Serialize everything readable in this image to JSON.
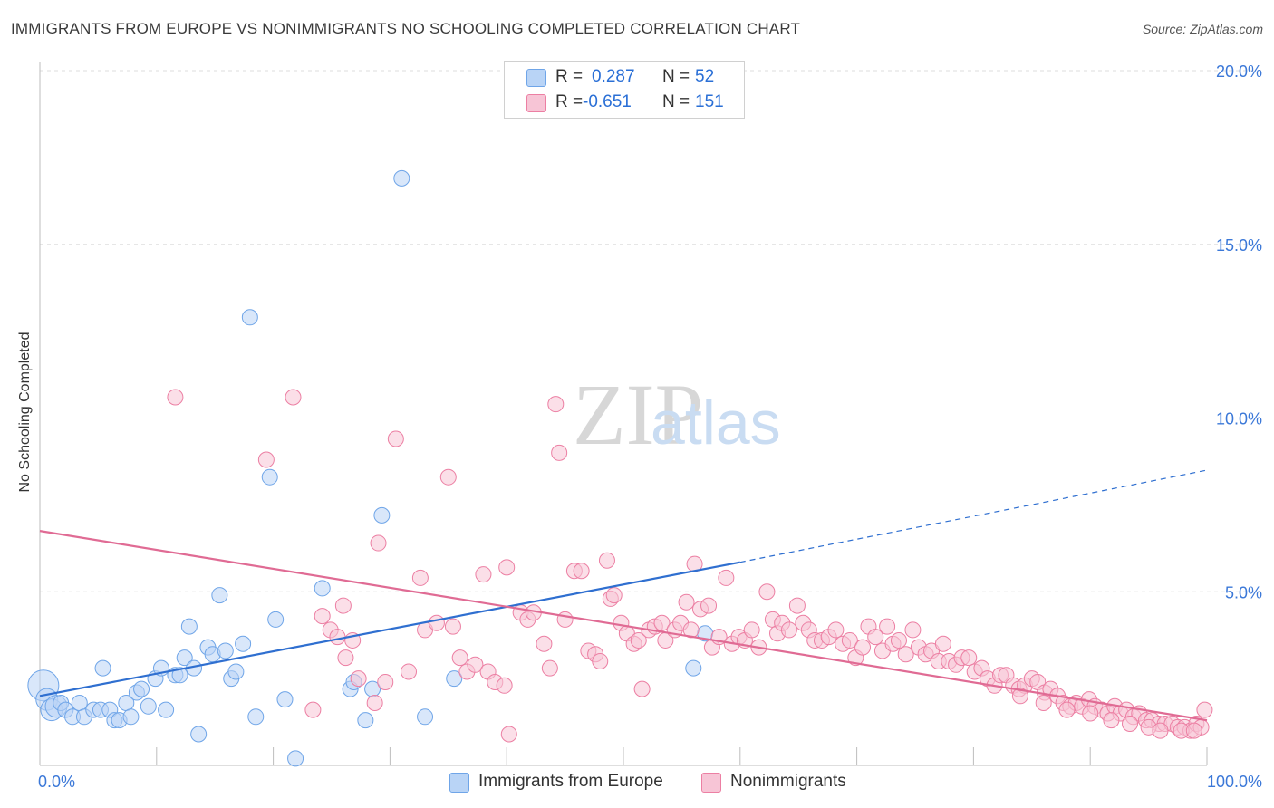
{
  "title": "IMMIGRANTS FROM EUROPE VS NONIMMIGRANTS NO SCHOOLING COMPLETED CORRELATION CHART",
  "source": "Source: ZipAtlas.com",
  "watermark": {
    "zip": "ZIP",
    "atlas": "atlas"
  },
  "legend": {
    "r_label": "R =",
    "n_label": "N =",
    "series": [
      {
        "name": "Immigrants from Europe",
        "r": "0.287",
        "n": "52",
        "color": "#6fa5e8",
        "fill": "#b9d4f6"
      },
      {
        "name": "Nonimmigrants",
        "r": "-0.651",
        "n": "151",
        "color": "#ec7fa3",
        "fill": "#f7c5d6"
      }
    ]
  },
  "chart_data": {
    "type": "scatter",
    "title": "IMMIGRANTS FROM EUROPE VS NONIMMIGRANTS NO SCHOOLING COMPLETED CORRELATION CHART",
    "xlabel": "",
    "ylabel": "No Schooling Completed",
    "xlim": [
      0,
      100
    ],
    "ylim": [
      0,
      20
    ],
    "x_tick_labels": [
      "0.0%",
      "100.0%"
    ],
    "y_tick_labels": [
      "5.0%",
      "10.0%",
      "15.0%",
      "20.0%"
    ],
    "y_ticks": [
      5,
      10,
      15,
      20
    ],
    "series": [
      {
        "name": "Immigrants from Europe",
        "trend": {
          "x0": 0,
          "y0": 2.0,
          "x1": 60,
          "y1": 5.85,
          "dash_to_x": 100,
          "dash_to_y": 8.5
        },
        "points": [
          [
            0.3,
            2.3,
            3
          ],
          [
            0.6,
            1.9,
            2
          ],
          [
            1.0,
            1.6,
            2
          ],
          [
            1.4,
            1.7,
            2
          ],
          [
            1.8,
            1.8,
            1
          ],
          [
            2.2,
            1.6,
            1
          ],
          [
            2.8,
            1.4,
            1
          ],
          [
            3.4,
            1.8,
            1
          ],
          [
            3.8,
            1.4,
            1
          ],
          [
            4.6,
            1.6,
            1
          ],
          [
            5.2,
            1.6,
            1
          ],
          [
            5.4,
            2.8,
            1
          ],
          [
            6.0,
            1.6,
            1
          ],
          [
            6.4,
            1.3,
            1
          ],
          [
            6.8,
            1.3,
            1
          ],
          [
            7.4,
            1.8,
            1
          ],
          [
            7.8,
            1.4,
            1
          ],
          [
            8.3,
            2.1,
            1
          ],
          [
            8.7,
            2.2,
            1
          ],
          [
            9.3,
            1.7,
            1
          ],
          [
            9.9,
            2.5,
            1
          ],
          [
            10.4,
            2.8,
            1
          ],
          [
            10.8,
            1.6,
            1
          ],
          [
            11.6,
            2.6,
            1
          ],
          [
            12.0,
            2.6,
            1
          ],
          [
            12.4,
            3.1,
            1
          ],
          [
            12.8,
            4.0,
            1
          ],
          [
            13.2,
            2.8,
            1
          ],
          [
            13.6,
            0.9,
            1
          ],
          [
            14.4,
            3.4,
            1
          ],
          [
            14.8,
            3.2,
            1
          ],
          [
            15.4,
            4.9,
            1
          ],
          [
            15.9,
            3.3,
            1
          ],
          [
            16.4,
            2.5,
            1
          ],
          [
            16.8,
            2.7,
            1
          ],
          [
            17.4,
            3.5,
            1
          ],
          [
            18.5,
            1.4,
            1
          ],
          [
            18.0,
            12.9,
            1
          ],
          [
            19.7,
            8.3,
            1
          ],
          [
            20.2,
            4.2,
            1
          ],
          [
            21.0,
            1.9,
            1
          ],
          [
            21.9,
            0.2,
            1
          ],
          [
            24.2,
            5.1,
            1
          ],
          [
            26.6,
            2.2,
            1
          ],
          [
            26.9,
            2.4,
            1
          ],
          [
            27.9,
            1.3,
            1
          ],
          [
            28.5,
            2.2,
            1
          ],
          [
            29.3,
            7.2,
            1
          ],
          [
            31.0,
            16.9,
            1
          ],
          [
            33.0,
            1.4,
            1
          ],
          [
            35.5,
            2.5,
            1
          ],
          [
            56.0,
            2.8,
            1
          ],
          [
            57.0,
            3.8,
            1
          ]
        ]
      },
      {
        "name": "Nonimmigrants",
        "trend": {
          "x0": 0,
          "y0": 6.75,
          "x1": 100,
          "y1": 1.3
        },
        "points": [
          [
            11.6,
            10.6,
            1
          ],
          [
            19.4,
            8.8,
            1
          ],
          [
            21.7,
            10.6,
            1
          ],
          [
            23.4,
            1.6,
            1
          ],
          [
            24.2,
            4.3,
            1
          ],
          [
            24.9,
            3.9,
            1
          ],
          [
            25.5,
            3.7,
            1
          ],
          [
            26.0,
            4.6,
            1
          ],
          [
            26.2,
            3.1,
            1
          ],
          [
            26.8,
            3.6,
            1
          ],
          [
            27.3,
            2.5,
            1
          ],
          [
            28.7,
            1.8,
            1
          ],
          [
            29.6,
            2.4,
            1
          ],
          [
            29.0,
            6.4,
            1
          ],
          [
            30.5,
            9.4,
            1
          ],
          [
            31.6,
            2.7,
            1
          ],
          [
            32.6,
            5.4,
            1
          ],
          [
            33.0,
            3.9,
            1
          ],
          [
            34.0,
            4.1,
            1
          ],
          [
            35.4,
            4.0,
            1
          ],
          [
            35.0,
            8.3,
            1
          ],
          [
            36.0,
            3.1,
            1
          ],
          [
            36.6,
            2.7,
            1
          ],
          [
            37.3,
            2.9,
            1
          ],
          [
            38.0,
            5.5,
            1
          ],
          [
            38.4,
            2.7,
            1
          ],
          [
            39.0,
            2.4,
            1
          ],
          [
            39.8,
            2.3,
            1
          ],
          [
            40.0,
            5.7,
            1
          ],
          [
            40.2,
            0.9,
            1
          ],
          [
            41.2,
            4.4,
            1
          ],
          [
            41.8,
            4.2,
            1
          ],
          [
            42.3,
            4.4,
            1
          ],
          [
            43.2,
            3.5,
            1
          ],
          [
            43.7,
            2.8,
            1
          ],
          [
            44.2,
            10.4,
            1
          ],
          [
            44.5,
            9.0,
            1
          ],
          [
            45.0,
            4.2,
            1
          ],
          [
            45.8,
            5.6,
            1
          ],
          [
            46.4,
            5.6,
            1
          ],
          [
            47.0,
            3.3,
            1
          ],
          [
            47.6,
            3.2,
            1
          ],
          [
            48.0,
            3.0,
            1
          ],
          [
            48.6,
            5.9,
            1
          ],
          [
            48.9,
            4.8,
            1
          ],
          [
            49.2,
            4.9,
            1
          ],
          [
            49.8,
            4.1,
            1
          ],
          [
            50.3,
            3.8,
            1
          ],
          [
            50.9,
            3.5,
            1
          ],
          [
            51.3,
            3.6,
            1
          ],
          [
            51.6,
            2.2,
            1
          ],
          [
            52.2,
            3.9,
            1
          ],
          [
            52.7,
            4.0,
            1
          ],
          [
            53.3,
            4.1,
            1
          ],
          [
            53.6,
            3.6,
            1
          ],
          [
            54.4,
            3.9,
            1
          ],
          [
            54.9,
            4.1,
            1
          ],
          [
            55.4,
            4.7,
            1
          ],
          [
            55.8,
            3.9,
            1
          ],
          [
            56.1,
            5.8,
            1
          ],
          [
            56.6,
            4.5,
            1
          ],
          [
            57.3,
            4.6,
            1
          ],
          [
            57.6,
            3.4,
            1
          ],
          [
            58.2,
            3.7,
            1
          ],
          [
            58.8,
            5.4,
            1
          ],
          [
            59.3,
            3.5,
            1
          ],
          [
            59.9,
            3.7,
            1
          ],
          [
            60.4,
            3.6,
            1
          ],
          [
            61.0,
            3.9,
            1
          ],
          [
            61.6,
            3.4,
            1
          ],
          [
            62.3,
            5.0,
            1
          ],
          [
            62.8,
            4.2,
            1
          ],
          [
            63.2,
            3.8,
            1
          ],
          [
            63.6,
            4.1,
            1
          ],
          [
            64.2,
            3.9,
            1
          ],
          [
            64.9,
            4.6,
            1
          ],
          [
            65.4,
            4.1,
            1
          ],
          [
            65.9,
            3.9,
            1
          ],
          [
            66.4,
            3.6,
            1
          ],
          [
            67.0,
            3.6,
            1
          ],
          [
            67.6,
            3.7,
            1
          ],
          [
            68.2,
            3.9,
            1
          ],
          [
            68.8,
            3.5,
            1
          ],
          [
            69.4,
            3.6,
            1
          ],
          [
            69.9,
            3.1,
            1
          ],
          [
            70.5,
            3.4,
            1
          ],
          [
            71.0,
            4.0,
            1
          ],
          [
            71.6,
            3.7,
            1
          ],
          [
            72.2,
            3.3,
            1
          ],
          [
            72.6,
            4.0,
            1
          ],
          [
            73.1,
            3.5,
            1
          ],
          [
            73.6,
            3.6,
            1
          ],
          [
            74.2,
            3.2,
            1
          ],
          [
            74.8,
            3.9,
            1
          ],
          [
            75.3,
            3.4,
            1
          ],
          [
            75.9,
            3.2,
            1
          ],
          [
            76.4,
            3.3,
            1
          ],
          [
            77.0,
            3.0,
            1
          ],
          [
            77.4,
            3.5,
            1
          ],
          [
            77.9,
            3.0,
            1
          ],
          [
            78.5,
            2.9,
            1
          ],
          [
            79.0,
            3.1,
            1
          ],
          [
            79.6,
            3.1,
            1
          ],
          [
            80.1,
            2.7,
            1
          ],
          [
            80.7,
            2.8,
            1
          ],
          [
            81.2,
            2.5,
            1
          ],
          [
            81.8,
            2.3,
            1
          ],
          [
            82.3,
            2.6,
            1
          ],
          [
            82.8,
            2.6,
            1
          ],
          [
            83.4,
            2.3,
            1
          ],
          [
            83.9,
            2.2,
            1
          ],
          [
            84.4,
            2.3,
            1
          ],
          [
            85.0,
            2.5,
            1
          ],
          [
            85.5,
            2.4,
            1
          ],
          [
            86.1,
            2.1,
            1
          ],
          [
            86.6,
            2.2,
            1
          ],
          [
            87.2,
            2.0,
            1
          ],
          [
            87.7,
            1.8,
            1
          ],
          [
            88.3,
            1.7,
            1
          ],
          [
            88.8,
            1.8,
            1
          ],
          [
            89.3,
            1.7,
            1
          ],
          [
            89.9,
            1.9,
            1
          ],
          [
            90.4,
            1.7,
            1
          ],
          [
            91.0,
            1.6,
            1
          ],
          [
            91.5,
            1.5,
            1
          ],
          [
            92.1,
            1.7,
            1
          ],
          [
            92.6,
            1.5,
            1
          ],
          [
            93.1,
            1.6,
            1
          ],
          [
            93.7,
            1.4,
            1
          ],
          [
            94.2,
            1.5,
            1
          ],
          [
            94.8,
            1.3,
            1
          ],
          [
            95.3,
            1.3,
            1
          ],
          [
            95.9,
            1.2,
            1
          ],
          [
            96.4,
            1.2,
            1
          ],
          [
            97.0,
            1.2,
            1
          ],
          [
            97.5,
            1.1,
            1
          ],
          [
            98.1,
            1.1,
            1
          ],
          [
            98.6,
            1.0,
            1
          ],
          [
            99.1,
            1.2,
            1
          ],
          [
            99.5,
            1.1,
            1
          ],
          [
            99.8,
            1.6,
            1
          ],
          [
            95.0,
            1.1,
            1
          ],
          [
            96.0,
            1.0,
            1
          ],
          [
            97.8,
            1.0,
            1
          ],
          [
            98.9,
            1.0,
            1
          ],
          [
            93.4,
            1.2,
            1
          ],
          [
            91.8,
            1.3,
            1
          ],
          [
            90.0,
            1.5,
            1
          ],
          [
            88.0,
            1.6,
            1
          ],
          [
            86.0,
            1.8,
            1
          ],
          [
            84.0,
            2.0,
            1
          ]
        ]
      }
    ]
  }
}
